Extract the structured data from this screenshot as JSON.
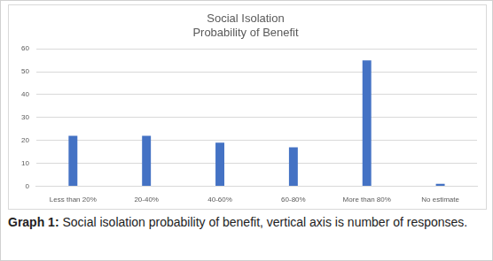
{
  "chart_data": {
    "type": "bar",
    "title": [
      "Social Isolation",
      "Probability of Benefit"
    ],
    "categories": [
      "Less than 20%",
      "20-40%",
      "40-60%",
      "60-80%",
      "More than 80%",
      "No estimate"
    ],
    "values": [
      22,
      22,
      19,
      17,
      55,
      1
    ],
    "color": "#4472c4",
    "ylim": [
      0,
      60
    ],
    "yticks": [
      0,
      10,
      20,
      30,
      40,
      50,
      60
    ],
    "grid": true
  },
  "caption": {
    "label": "Graph 1:",
    "text": "Social isolation probability of benefit, vertical axis is number of responses."
  }
}
